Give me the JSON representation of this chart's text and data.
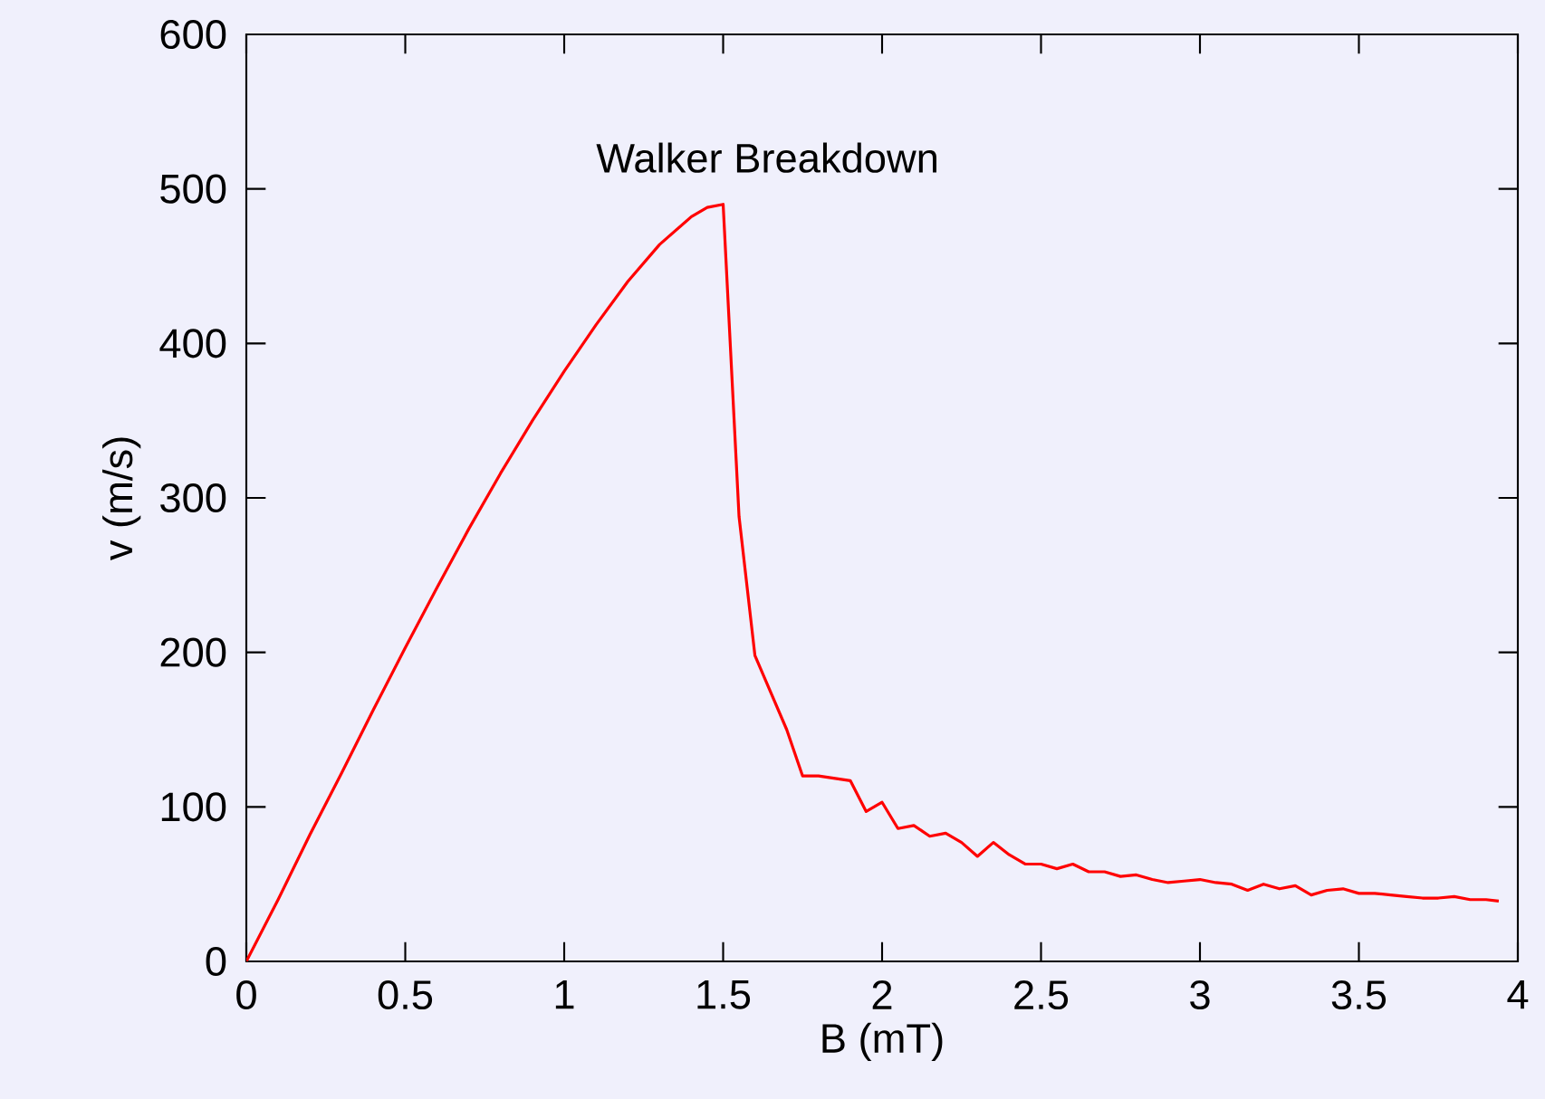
{
  "chart_data": {
    "type": "line",
    "xlabel": "B (mT)",
    "ylabel": "v (m/s)",
    "annotations": [
      "Walker Breakdown"
    ],
    "xlim": [
      0,
      4
    ],
    "xticks": [
      0,
      0.5,
      1,
      1.5,
      2,
      2.5,
      3,
      3.5,
      4
    ],
    "ylim": [
      0,
      600
    ],
    "yticks": [
      0,
      100,
      200,
      300,
      400,
      500,
      600
    ],
    "marker": "none",
    "line_style": "solid",
    "series": [
      {
        "color": "#ff0000",
        "x": [
          0,
          0.1,
          0.2,
          0.3,
          0.4,
          0.5,
          0.6,
          0.7,
          0.8,
          0.9,
          1.0,
          1.1,
          1.2,
          1.3,
          1.4,
          1.45,
          1.5,
          1.55,
          1.6,
          1.7,
          1.75,
          1.8,
          1.9,
          1.95,
          2.0,
          2.05,
          2.1,
          2.15,
          2.2,
          2.25,
          2.3,
          2.35,
          2.4,
          2.45,
          2.5,
          2.55,
          2.6,
          2.65,
          2.7,
          2.75,
          2.8,
          2.85,
          2.9,
          2.95,
          3.0,
          3.05,
          3.1,
          3.15,
          3.2,
          3.25,
          3.3,
          3.35,
          3.4,
          3.45,
          3.5,
          3.55,
          3.6,
          3.65,
          3.7,
          3.75,
          3.8,
          3.85,
          3.9,
          3.94
        ],
        "values": [
          0,
          40,
          82,
          122,
          163,
          203,
          242,
          280,
          316,
          350,
          382,
          412,
          440,
          464,
          482,
          488,
          490,
          288,
          198,
          150,
          120,
          120,
          117,
          97,
          103,
          86,
          88,
          81,
          83,
          77,
          68,
          77,
          69,
          63,
          63,
          60,
          63,
          58,
          58,
          55,
          56,
          53,
          51,
          52,
          53,
          51,
          50,
          46,
          50,
          47,
          49,
          43,
          46,
          47,
          44,
          44,
          43,
          42,
          41,
          41,
          42,
          40,
          40,
          39
        ]
      }
    ]
  }
}
